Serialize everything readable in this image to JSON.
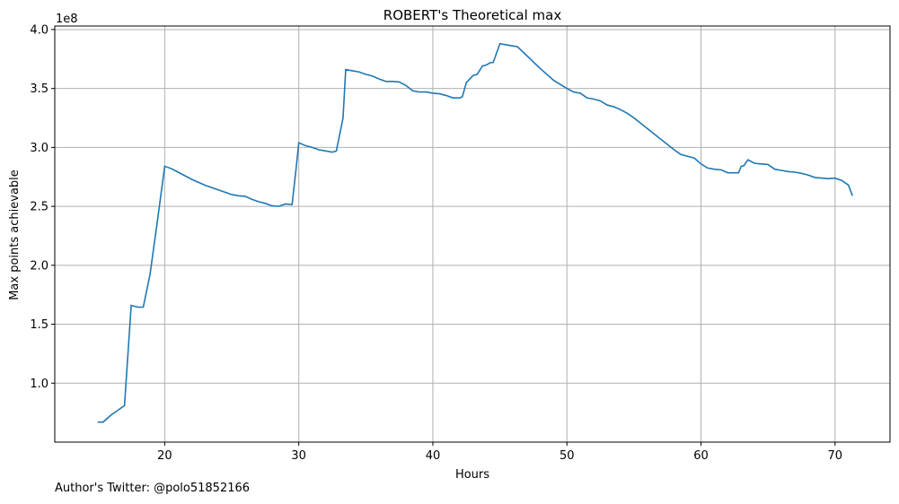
{
  "chart_data": {
    "type": "line",
    "title": "ROBERT's Theoretical max",
    "xlabel": "Hours",
    "ylabel": "Max points achievable",
    "y_offset_label": "1e8",
    "xlim": [
      11.8,
      74.1
    ],
    "ylim": [
      0.5,
      4.03
    ],
    "x_ticks": [
      20,
      30,
      40,
      50,
      60,
      70
    ],
    "y_ticks": [
      1.0,
      1.5,
      2.0,
      2.5,
      3.0,
      3.5,
      4.0
    ],
    "y_tick_labels": [
      "1.0",
      "1.5",
      "2.0",
      "2.5",
      "3.0",
      "3.5",
      "4.0"
    ],
    "grid": true,
    "line_color": "#1f77b4",
    "series": [
      {
        "x": [
          15.0,
          15.4,
          16.0,
          17.0,
          17.5,
          18.0,
          18.4,
          18.9,
          19.4,
          20.0,
          20.5,
          21.0,
          22.0,
          23.0,
          23.5,
          24.0,
          25.0,
          25.5,
          26.0,
          26.5,
          27.0,
          27.5,
          28.0,
          28.5,
          29.0,
          29.5,
          29.8,
          30.0,
          30.5,
          31.0,
          31.5,
          32.0,
          32.5,
          32.8,
          33.0,
          33.3,
          33.5,
          34.0,
          34.5,
          35.0,
          35.5,
          36.0,
          36.5,
          37.0,
          37.5,
          38.0,
          38.5,
          39.0,
          39.5,
          40.0,
          40.5,
          41.0,
          41.5,
          42.0,
          42.2,
          42.5,
          43.0,
          43.3,
          43.7,
          44.0,
          44.3,
          44.5,
          45.0,
          45.5,
          46.0,
          46.3,
          47.0,
          48.0,
          49.0,
          50.0,
          50.5,
          51.0,
          51.5,
          52.0,
          52.5,
          53.0,
          53.5,
          54.0,
          54.5,
          55.0,
          56.0,
          57.0,
          58.0,
          58.5,
          59.0,
          59.5,
          60.0,
          60.5,
          61.0,
          61.5,
          62.0,
          62.5,
          62.8,
          63.0,
          63.2,
          63.5,
          64.0,
          64.5,
          65.0,
          65.5,
          66.0,
          66.5,
          67.0,
          67.5,
          68.0,
          68.5,
          69.0,
          69.5,
          70.0,
          70.5,
          71.0,
          71.3
        ],
        "values": [
          0.67,
          0.67,
          0.73,
          0.81,
          1.66,
          1.645,
          1.645,
          1.92,
          2.33,
          2.84,
          2.82,
          2.79,
          2.73,
          2.68,
          2.66,
          2.64,
          2.6,
          2.59,
          2.585,
          2.56,
          2.54,
          2.525,
          2.505,
          2.5,
          2.52,
          2.515,
          2.82,
          3.04,
          3.015,
          3.0,
          2.98,
          2.97,
          2.96,
          2.97,
          3.08,
          3.25,
          3.66,
          3.65,
          3.64,
          3.62,
          3.605,
          3.58,
          3.56,
          3.56,
          3.555,
          3.525,
          3.48,
          3.47,
          3.47,
          3.46,
          3.455,
          3.44,
          3.42,
          3.42,
          3.43,
          3.55,
          3.61,
          3.62,
          3.69,
          3.7,
          3.72,
          3.72,
          3.88,
          3.87,
          3.86,
          3.855,
          3.78,
          3.67,
          3.57,
          3.5,
          3.47,
          3.46,
          3.42,
          3.41,
          3.395,
          3.36,
          3.345,
          3.32,
          3.29,
          3.25,
          3.16,
          3.07,
          2.98,
          2.94,
          2.925,
          2.91,
          2.86,
          2.825,
          2.815,
          2.81,
          2.785,
          2.785,
          2.785,
          2.84,
          2.845,
          2.895,
          2.865,
          2.86,
          2.855,
          2.815,
          2.805,
          2.795,
          2.79,
          2.78,
          2.765,
          2.745,
          2.74,
          2.735,
          2.74,
          2.72,
          2.68,
          2.59
        ]
      }
    ]
  },
  "footer": {
    "credit": "Author's Twitter: @polo51852166"
  }
}
